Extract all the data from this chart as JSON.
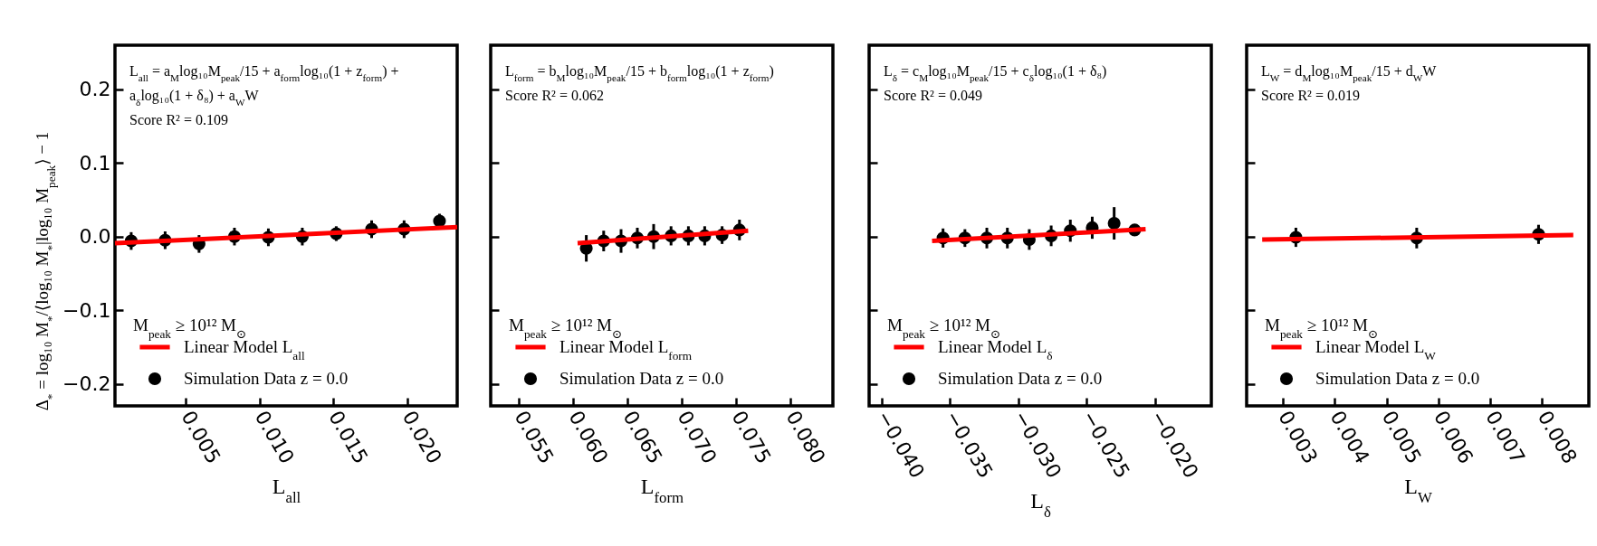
{
  "chart_data": [
    {
      "type": "scatter",
      "xlabel": "L$_{all}$",
      "ylabel": "Δ$_{*}$ = log₁₀ M$_{*}$/⟨log₁₀ M$_{*}$|log₁₀ M$_{peak}$⟩ − 1",
      "legend_title": "M$_{peak}$ ≥ 10¹² M$_{⊙}$",
      "legend": "bottom left",
      "annotations": [
        "L$_{all}$ = a$_{M}$log₁₀M$_{peak}$/15 + a$_{form}$log₁₀(1 + z$_{form}$) +",
        "a$_{δ}$log₁₀(1 + δ₈) + a$_{W}$W",
        "Score R² = 0.109"
      ],
      "xlim": [
        0.0002,
        0.0234
      ],
      "xticks": [
        0.005,
        {
          "value": 0.01,
          "label": "0.010"
        },
        0.015,
        {
          "value": 0.02,
          "label": "0.020"
        }
      ],
      "ylim": [
        -0.23,
        0.26
      ],
      "yticks": [
        {
          "value": -0.2,
          "label": "−0.2"
        },
        {
          "value": -0.1,
          "label": "−0.1"
        },
        {
          "value": 0,
          "label": "0.0"
        },
        0.1,
        0.2
      ],
      "series": [
        {
          "name": "Linear Model L$_{all}$",
          "type": "line",
          "color": "#ff0000",
          "x": [
            0.0002,
            0.0234
          ],
          "values": [
            -0.009,
            0.013
          ]
        },
        {
          "name": "Simulation Data z = 0.0",
          "type": "scatter",
          "marker": "circle",
          "color": "#000000",
          "x": [
            0.0013,
            0.0036,
            0.0059,
            0.0083,
            0.0106,
            0.0129,
            0.0152,
            0.0176,
            0.0198,
            0.0222
          ],
          "values": [
            -0.006,
            -0.005,
            -0.01,
            0,
            -0.001,
            0,
            0.004,
            0.01,
            0.01,
            0.021
          ],
          "errors": [
            0.012,
            0.012,
            0.012,
            0.012,
            0.012,
            0.012,
            0.01,
            0.012,
            0.012,
            0.01
          ]
        }
      ]
    },
    {
      "type": "scatter",
      "xlabel": "L$_{form}$",
      "legend_title": "M$_{peak}$ ≥ 10¹² M$_{⊙}$",
      "legend": "bottom left",
      "tick_labels": "x",
      "annotations": [
        "L$_{form}$ = b$_{M}$log₁₀M$_{peak}$/15 + b$_{form}$log₁₀(1 + z$_{form}$)",
        "Score R² = 0.062"
      ],
      "xlim": [
        0.0524,
        0.0839
      ],
      "xticks": [
        0.055,
        {
          "value": 0.06,
          "label": "0.060"
        },
        0.065,
        {
          "value": 0.07,
          "label": "0.070"
        },
        0.075,
        {
          "value": 0.08,
          "label": "0.080"
        }
      ],
      "ylim": [
        -0.23,
        0.26
      ],
      "yticks": [
        -0.2,
        -0.1,
        0,
        0.1,
        0.2
      ],
      "series": [
        {
          "name": "Linear Model L$_{form}$",
          "type": "line",
          "color": "#ff0000",
          "x": [
            0.0604,
            0.0761
          ],
          "values": [
            -0.009,
            0.008
          ]
        },
        {
          "name": "Simulation Data z = 0.0",
          "type": "scatter",
          "marker": "circle",
          "color": "#000000",
          "x": [
            0.0612,
            0.0628,
            0.0644,
            0.0659,
            0.0674,
            0.069,
            0.0706,
            0.0721,
            0.0737,
            0.0753
          ],
          "values": [
            -0.016,
            -0.006,
            -0.006,
            -0.002,
            0,
            0.001,
            0.001,
            0.001,
            0.002,
            0.009
          ],
          "errors": [
            0.018,
            0.014,
            0.016,
            0.014,
            0.017,
            0.013,
            0.013,
            0.013,
            0.012,
            0.014
          ]
        }
      ]
    },
    {
      "type": "scatter",
      "xlabel": "L$_{δ}$",
      "legend_title": "M$_{peak}$ ≥ 10¹² M$_{⊙}$",
      "legend": "bottom left",
      "tick_labels": "x",
      "annotations": [
        "L$_{δ}$ = c$_{M}$log₁₀M$_{peak}$/15 + c$_{δ}$log₁₀(1 + δ₈)",
        "Score R² = 0.049"
      ],
      "xlim": [
        -0.0409,
        -0.0159
      ],
      "xticks": [
        {
          "value": -0.04,
          "label": "−0.040"
        },
        {
          "value": -0.035,
          "label": "−0.035"
        },
        {
          "value": -0.03,
          "label": "−0.030"
        },
        {
          "value": -0.025,
          "label": "−0.025"
        },
        {
          "value": -0.02,
          "label": "−0.020"
        }
      ],
      "ylim": [
        -0.23,
        0.26
      ],
      "yticks": [
        -0.2,
        -0.1,
        0,
        0.1,
        0.2
      ],
      "series": [
        {
          "name": "Linear Model L$_{δ}$",
          "type": "line",
          "color": "#ff0000",
          "x": [
            -0.0363,
            -0.0207
          ],
          "values": [
            -0.006,
            0.01
          ]
        },
        {
          "name": "Simulation Data z = 0.0",
          "type": "scatter",
          "marker": "circle",
          "color": "#000000",
          "x": [
            -0.0355,
            -0.0339,
            -0.0323,
            -0.0308,
            -0.0292,
            -0.0276,
            -0.0262,
            -0.0246,
            -0.023,
            -0.0215
          ],
          "values": [
            -0.002,
            -0.002,
            -0.002,
            -0.002,
            -0.004,
            0.001,
            0.008,
            0.012,
            0.018,
            0.009
          ],
          "errors": [
            0.013,
            0.012,
            0.014,
            0.014,
            0.014,
            0.014,
            0.015,
            0.015,
            0.022,
            0.004
          ]
        }
      ]
    },
    {
      "type": "scatter",
      "xlabel": "L$_{W}$",
      "legend_title": "M$_{peak}$ ≥ 10¹² M$_{⊙}$",
      "legend": "bottom left",
      "tick_labels": "x",
      "annotations": [
        "L$_{W}$ = d$_{M}$log₁₀M$_{peak}$/15 + d$_{W}$W",
        "Score R² = 0.019"
      ],
      "xlim": [
        0.0023,
        0.0089
      ],
      "xticks": [
        0.003,
        0.004,
        0.005,
        0.006,
        0.007,
        0.008
      ],
      "ylim": [
        -0.23,
        0.26
      ],
      "yticks": [
        -0.2,
        -0.1,
        0,
        0.1,
        0.2
      ],
      "series": [
        {
          "name": "Linear Model L$_{W}$",
          "type": "line",
          "color": "#ff0000",
          "x": [
            0.0026,
            0.0086
          ],
          "values": [
            -0.004,
            0.002
          ]
        },
        {
          "name": "Simulation Data z = 0.0",
          "type": "scatter",
          "marker": "circle",
          "color": "#000000",
          "x": [
            0.00325,
            0.00558,
            0.00793
          ],
          "values": [
            -0.001,
            -0.002,
            0.003
          ],
          "errors": [
            0.013,
            0.014,
            0.013
          ]
        }
      ]
    }
  ]
}
